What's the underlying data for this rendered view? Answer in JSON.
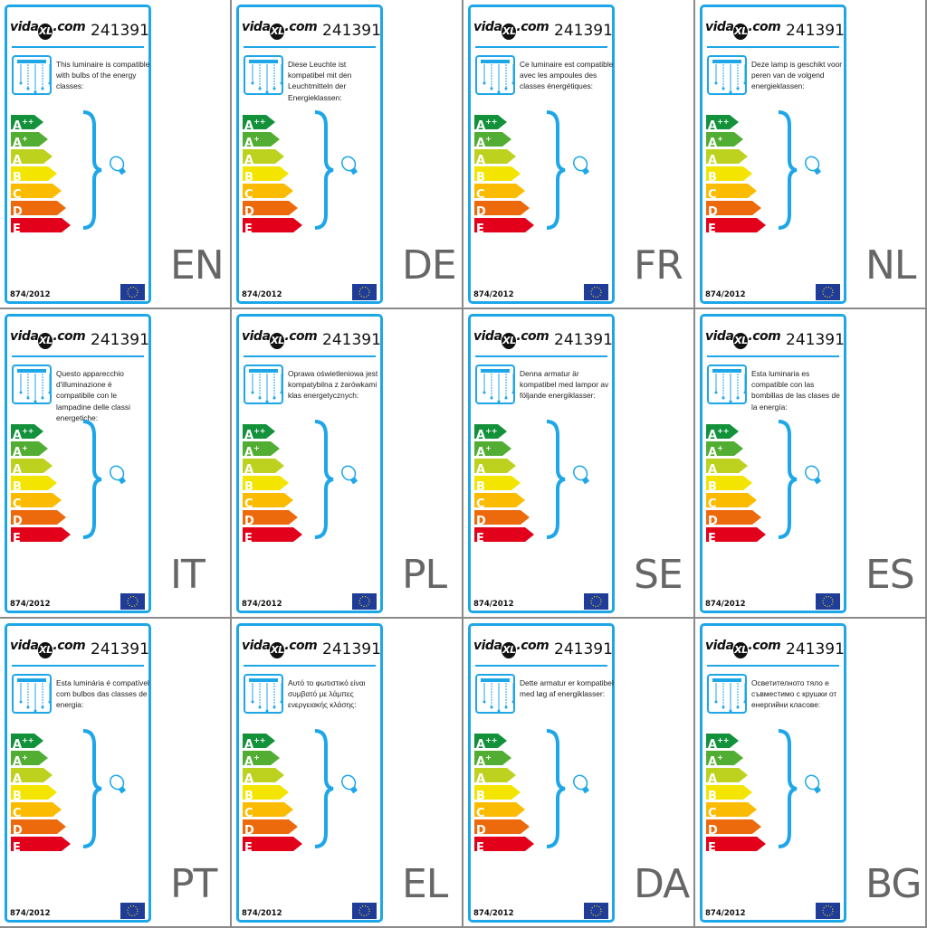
{
  "brand": {
    "logo_text": "vidaXL.com",
    "logo_left": "vida",
    "logo_mark": "XL",
    "logo_right": ".com"
  },
  "product_number": "241391",
  "regulation": "874/2012",
  "energy_classes": [
    {
      "main": "A",
      "sup": "++",
      "color": "#13913b"
    },
    {
      "main": "A",
      "sup": "+",
      "color": "#52ae32"
    },
    {
      "main": "A",
      "sup": "",
      "color": "#bdd21f"
    },
    {
      "main": "B",
      "sup": "",
      "color": "#f4e500"
    },
    {
      "main": "C",
      "sup": "",
      "color": "#fbbb00"
    },
    {
      "main": "D",
      "sup": "",
      "color": "#ec6a0b"
    },
    {
      "main": "E",
      "sup": "",
      "color": "#e2001a"
    }
  ],
  "accent_color": "#1ea7e8",
  "labels": [
    {
      "code": "EN",
      "text": "This luminaire is compatible with bulbs of the energy classes:"
    },
    {
      "code": "DE",
      "text": "Diese Leuchte ist kompatibel mit den Leuchtmitteln der Energieklassen:"
    },
    {
      "code": "FR",
      "text": "Ce luminaire est compatible avec les ampoules des classes énergétiques:"
    },
    {
      "code": "NL",
      "text": "Deze lamp is geschikt voor peren van de volgend energieklassen:"
    },
    {
      "code": "IT",
      "text": "Questo apparecchio d'illuminazione è compatibile con le lampadine delle classi energetiche:"
    },
    {
      "code": "PL",
      "text": "Oprawa oświetleniowa jest kompatybilna z żarówkami klas energetycznych:"
    },
    {
      "code": "SE",
      "text": "Denna armatur är kompatibel med lampor av följande energiklasser:"
    },
    {
      "code": "ES",
      "text": "Esta luminaria es compatible con las bombillas de las clases de la energía:"
    },
    {
      "code": "PT",
      "text": "Esta luminária é compatível com bulbos das classes de energia:"
    },
    {
      "code": "EL",
      "text": "Αυτό το φωτιστικό είναι συμβατό με λάμπες ενεργειακής κλάσης:"
    },
    {
      "code": "DA",
      "text": "Dette armatur er kompatibel med løg af energiklasser:"
    },
    {
      "code": "BG",
      "text": "Осветителното тяло е съвместимо с крушки от енергийни класове:"
    }
  ]
}
